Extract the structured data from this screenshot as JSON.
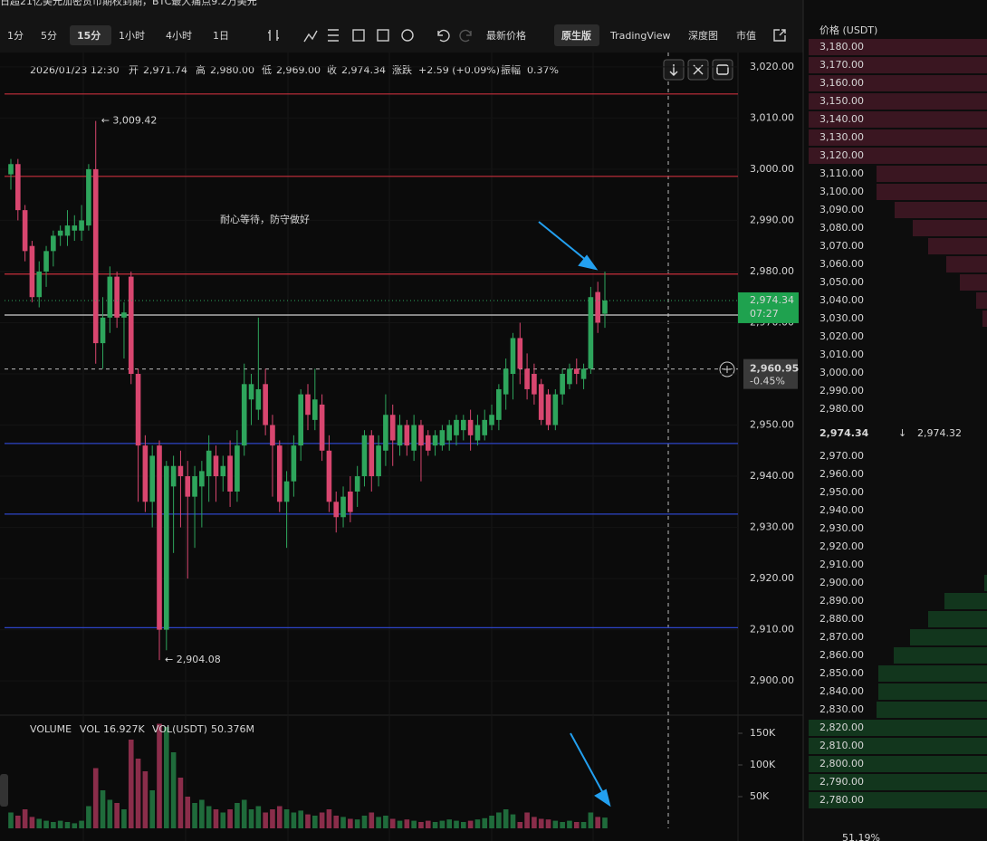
{
  "banner": "日超21亿美元加密货币期权到期，BTC最大痛点9.2万美元",
  "toolbar": [
    "1分",
    "5分",
    "15分",
    "1小时",
    "4小时",
    "1日",
    "最新价格",
    "原生版",
    "TradingView",
    "深度图",
    "市值"
  ],
  "info": [
    "2026/01/23 12:30",
    "开",
    "2,971.74",
    "高",
    "2,980.00",
    "低",
    "2,969.00",
    "收",
    "2,974.34",
    "涨跌",
    "+2.59 (+0.09%)",
    "振幅",
    "0.37%"
  ],
  "chart_data": {
    "type": "candlestick",
    "annotation": "耐心等待，防守做好",
    "high_label": "← 3,009.42",
    "low_label": "← 2,904.08",
    "up_color": "#2ea55c",
    "down_color": "#d8466f",
    "ylim": [
      2893.3,
      3022.1
    ],
    "yticks": [
      {
        "value": 3020,
        "label": "3,020.00"
      },
      {
        "value": 3010,
        "label": "3,010.00"
      },
      {
        "value": 3000,
        "label": "3,000.00"
      },
      {
        "value": 2990,
        "label": "2,990.00"
      },
      {
        "value": 2980,
        "label": "2,980.00"
      },
      {
        "value": 2970,
        "label": "2,970.00"
      },
      {
        "value": 2960,
        "label": "2,960.00"
      },
      {
        "value": 2950,
        "label": "2,950.00"
      },
      {
        "value": 2940,
        "label": "2,940.00"
      },
      {
        "value": 2930,
        "label": "2,930.00"
      },
      {
        "value": 2920,
        "label": "2,920.00"
      },
      {
        "value": 2910,
        "label": "2,910.00"
      },
      {
        "value": 2900,
        "label": "2,900.00"
      }
    ],
    "levels": [
      {
        "value": 3014.7,
        "color": "#c8303c"
      },
      {
        "value": 2998.6,
        "color": "#c8303c"
      },
      {
        "value": 2979.5,
        "color": "#c8303c"
      },
      {
        "value": 2971.5,
        "color": "#cfcfcf"
      },
      {
        "value": 2946.4,
        "color": "#2d44c8"
      },
      {
        "value": 2932.6,
        "color": "#2d44c8"
      },
      {
        "value": 2910.4,
        "color": "#2d44c8"
      }
    ],
    "crosshair": {
      "value": 2960.95,
      "label": "2,960.95",
      "change": "-0.45%"
    },
    "price_tag": {
      "label": "2,974.34",
      "countdown": "07:27"
    },
    "ohlc": [
      [
        2999,
        3002,
        2996,
        3001
      ],
      [
        3001,
        3002,
        2990,
        2992
      ],
      [
        2992,
        2993,
        2982,
        2984
      ],
      [
        2985,
        2986,
        2974,
        2975
      ],
      [
        2975,
        2982,
        2973,
        2980
      ],
      [
        2980,
        2985,
        2977,
        2984
      ],
      [
        2984,
        2988,
        2981,
        2987
      ],
      [
        2987,
        2989,
        2985,
        2988
      ],
      [
        2987,
        2992,
        2985,
        2989
      ],
      [
        2988,
        2991,
        2986,
        2989
      ],
      [
        2988,
        2993,
        2986,
        2990
      ],
      [
        2989,
        3001,
        2988,
        3000
      ],
      [
        3000,
        3009.42,
        2962,
        2966
      ],
      [
        2966,
        2975,
        2961,
        2971
      ],
      [
        2971,
        2981,
        2968,
        2979
      ],
      [
        2979,
        2980,
        2969,
        2971
      ],
      [
        2971,
        2974,
        2963,
        2972
      ],
      [
        2979,
        2980,
        2958,
        2960
      ],
      [
        2960,
        2961,
        2935,
        2946
      ],
      [
        2946,
        2948,
        2933,
        2935
      ],
      [
        2935,
        2946,
        2930,
        2944
      ],
      [
        2946,
        2947,
        2904.08,
        2910
      ],
      [
        2910,
        2943,
        2906,
        2942
      ],
      [
        2938,
        2944,
        2925,
        2942
      ],
      [
        2942,
        2945,
        2930,
        2940
      ],
      [
        2940,
        2943,
        2920,
        2936
      ],
      [
        2936,
        2942,
        2926,
        2940
      ],
      [
        2938,
        2943,
        2930,
        2941
      ],
      [
        2940,
        2948,
        2935,
        2945
      ],
      [
        2944,
        2946,
        2935,
        2940
      ],
      [
        2940,
        2944,
        2937,
        2942
      ],
      [
        2944,
        2947,
        2934,
        2937
      ],
      [
        2937,
        2949,
        2935,
        2946
      ],
      [
        2946,
        2962,
        2944,
        2958
      ],
      [
        2955,
        2960,
        2950,
        2958
      ],
      [
        2953,
        2971,
        2951,
        2957
      ],
      [
        2958,
        2961,
        2948,
        2950
      ],
      [
        2950,
        2952,
        2936,
        2946
      ],
      [
        2946,
        2947,
        2933,
        2935
      ],
      [
        2935,
        2941,
        2926,
        2939
      ],
      [
        2939,
        2948,
        2936,
        2946
      ],
      [
        2946,
        2957,
        2943,
        2956
      ],
      [
        2956,
        2958,
        2949,
        2952
      ],
      [
        2951,
        2961,
        2949,
        2955
      ],
      [
        2954,
        2956,
        2943,
        2945
      ],
      [
        2945,
        2948,
        2933,
        2935
      ],
      [
        2935,
        2937,
        2929,
        2932
      ],
      [
        2932,
        2938,
        2930,
        2936
      ],
      [
        2937,
        2940,
        2931,
        2933
      ],
      [
        2937,
        2942,
        2934,
        2940
      ],
      [
        2940,
        2949,
        2938,
        2948
      ],
      [
        2948,
        2949,
        2937,
        2940
      ],
      [
        2940,
        2948,
        2938,
        2946
      ],
      [
        2945,
        2956,
        2942,
        2952
      ],
      [
        2952,
        2954,
        2942,
        2947
      ],
      [
        2946,
        2952,
        2944,
        2950
      ],
      [
        2950,
        2951,
        2944,
        2946
      ],
      [
        2945,
        2952,
        2943,
        2950
      ],
      [
        2950,
        2951,
        2939,
        2946
      ],
      [
        2948,
        2949,
        2944,
        2945
      ],
      [
        2946,
        2949,
        2944,
        2948
      ],
      [
        2946,
        2950,
        2945,
        2949
      ],
      [
        2947,
        2951,
        2945,
        2950
      ],
      [
        2948,
        2952,
        2946,
        2951
      ],
      [
        2949,
        2952,
        2947,
        2951
      ],
      [
        2951,
        2953,
        2945,
        2948
      ],
      [
        2947,
        2952,
        2946,
        2950
      ],
      [
        2948,
        2953,
        2947,
        2951
      ],
      [
        2950,
        2954,
        2949,
        2952
      ],
      [
        2951,
        2958,
        2949,
        2957
      ],
      [
        2956,
        2963,
        2953,
        2961
      ],
      [
        2960,
        2968,
        2955,
        2967
      ],
      [
        2967,
        2970,
        2958,
        2961
      ],
      [
        2961,
        2964,
        2955,
        2957
      ],
      [
        2960,
        2962,
        2954,
        2956
      ],
      [
        2958,
        2959,
        2950,
        2951
      ],
      [
        2956,
        2957,
        2949,
        2950
      ],
      [
        2950,
        2957,
        2949,
        2956
      ],
      [
        2956,
        2961,
        2954,
        2960
      ],
      [
        2958,
        2962,
        2957,
        2961
      ],
      [
        2961,
        2963,
        2958,
        2960
      ],
      [
        2959,
        2962,
        2957,
        2961
      ],
      [
        2961,
        2977,
        2960,
        2975
      ],
      [
        2976,
        2978,
        2968,
        2970
      ],
      [
        2971.74,
        2980,
        2969,
        2974.34
      ]
    ],
    "volume": {
      "title": "VOLUME",
      "vol_label": "VOL",
      "vol": "16.927K",
      "vol_usdt_label": "VOL(USDT)",
      "vol_usdt": "50.376M",
      "ylim": [
        0,
        170000
      ],
      "yticks": [
        {
          "value": 150000,
          "label": "150K"
        },
        {
          "value": 100000,
          "label": "100K"
        },
        {
          "value": 50000,
          "label": "50K"
        }
      ],
      "values": [
        25000,
        20000,
        30000,
        18000,
        15000,
        12000,
        10000,
        12000,
        10000,
        8000,
        12000,
        35000,
        95000,
        60000,
        45000,
        40000,
        30000,
        140000,
        110000,
        90000,
        60000,
        165000,
        160000,
        120000,
        80000,
        50000,
        40000,
        45000,
        35000,
        30000,
        25000,
        30000,
        40000,
        45000,
        30000,
        35000,
        25000,
        30000,
        35000,
        30000,
        25000,
        28000,
        22000,
        20000,
        25000,
        30000,
        20000,
        18000,
        15000,
        14000,
        20000,
        25000,
        18000,
        20000,
        15000,
        12000,
        14000,
        12000,
        10000,
        12000,
        10000,
        12000,
        14000,
        12000,
        10000,
        12000,
        14000,
        16000,
        20000,
        25000,
        30000,
        22000,
        10000,
        25000,
        18000,
        15000,
        14000,
        12000,
        10000,
        12000,
        10000,
        10000,
        25000,
        18000,
        16927
      ]
    }
  },
  "order_book": {
    "header": "价格 (USDT)",
    "depth_lim": [
      0,
      200
    ],
    "asks": [
      {
        "price": "3,180.00",
        "depth": 197
      },
      {
        "price": "3,170.00",
        "depth": 197
      },
      {
        "price": "3,160.00",
        "depth": 197
      },
      {
        "price": "3,150.00",
        "depth": 197
      },
      {
        "price": "3,140.00",
        "depth": 197
      },
      {
        "price": "3,130.00",
        "depth": 197
      },
      {
        "price": "3,120.00",
        "depth": 197
      },
      {
        "price": "3,110.00",
        "depth": 122
      },
      {
        "price": "3,100.00",
        "depth": 122
      },
      {
        "price": "3,090.00",
        "depth": 102
      },
      {
        "price": "3,080.00",
        "depth": 82
      },
      {
        "price": "3,070.00",
        "depth": 65
      },
      {
        "price": "3,060.00",
        "depth": 45
      },
      {
        "price": "3,050.00",
        "depth": 30
      },
      {
        "price": "3,040.00",
        "depth": 12
      },
      {
        "price": "3,030.00",
        "depth": 5
      },
      {
        "price": "3,020.00",
        "depth": 0
      },
      {
        "price": "3,010.00",
        "depth": 0
      },
      {
        "price": "3,000.00",
        "depth": 0
      },
      {
        "price": "2,990.00",
        "depth": 0
      },
      {
        "price": "2,980.00",
        "depth": 0
      }
    ],
    "last": "2,974.34",
    "direction": "↓",
    "mark": "2,974.32",
    "bids": [
      {
        "price": "2,970.00",
        "depth": 0
      },
      {
        "price": "2,960.00",
        "depth": 0
      },
      {
        "price": "2,950.00",
        "depth": 0
      },
      {
        "price": "2,940.00",
        "depth": 0
      },
      {
        "price": "2,930.00",
        "depth": 0
      },
      {
        "price": "2,920.00",
        "depth": 0
      },
      {
        "price": "2,910.00",
        "depth": 0
      },
      {
        "price": "2,900.00",
        "depth": 3
      },
      {
        "price": "2,890.00",
        "depth": 47
      },
      {
        "price": "2,880.00",
        "depth": 65
      },
      {
        "price": "2,870.00",
        "depth": 85
      },
      {
        "price": "2,860.00",
        "depth": 103
      },
      {
        "price": "2,850.00",
        "depth": 120
      },
      {
        "price": "2,840.00",
        "depth": 120
      },
      {
        "price": "2,830.00",
        "depth": 122
      },
      {
        "price": "2,820.00",
        "depth": 197
      },
      {
        "price": "2,810.00",
        "depth": 197
      },
      {
        "price": "2,800.00",
        "depth": 197
      },
      {
        "price": "2,790.00",
        "depth": 197
      },
      {
        "price": "2,780.00",
        "depth": 197
      }
    ],
    "ratio": "51.19%"
  }
}
